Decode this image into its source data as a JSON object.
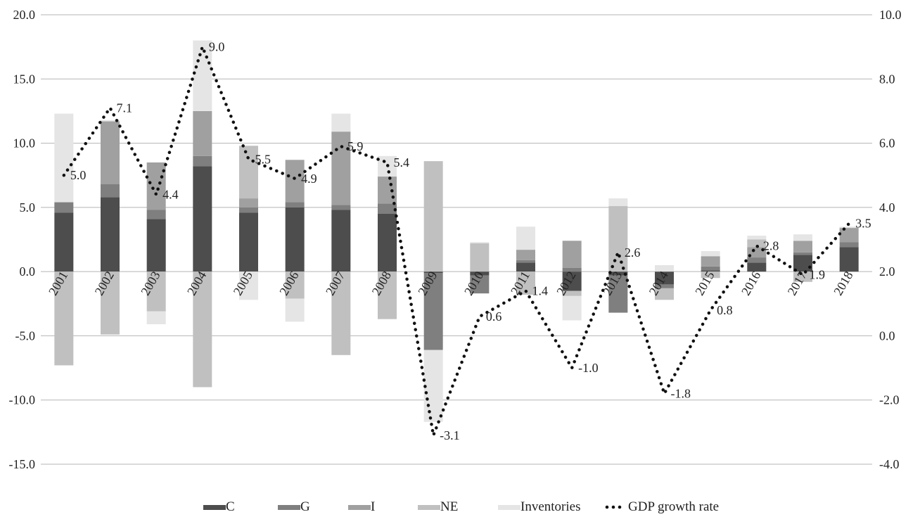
{
  "chart_data": {
    "type": "bar",
    "subtype": "stacked-bar-with-line",
    "categories": [
      "2001",
      "2002",
      "2003",
      "2004",
      "2005",
      "2006",
      "2007",
      "2008",
      "2009",
      "2010",
      "2011",
      "2012",
      "2013",
      "2014",
      "2015",
      "2016",
      "2017",
      "2018"
    ],
    "series": [
      {
        "name": "C",
        "color": "#4d4d4d",
        "values": [
          4.6,
          5.8,
          4.1,
          8.2,
          4.6,
          5.0,
          4.8,
          4.5,
          -0.1,
          -0.3,
          0.7,
          -1.5,
          -0.3,
          -1.0,
          0.1,
          0.7,
          1.3,
          1.9
        ]
      },
      {
        "name": "G",
        "color": "#7f7f7f",
        "values": [
          0.8,
          1.0,
          0.7,
          0.8,
          0.4,
          0.4,
          0.4,
          0.8,
          -6.0,
          -1.4,
          0.2,
          0.3,
          -2.9,
          -0.3,
          0.3,
          0.4,
          0.2,
          0.4
        ]
      },
      {
        "name": "I",
        "color": "#a0a0a0",
        "values": [
          0.0,
          4.9,
          3.7,
          3.5,
          0.7,
          3.3,
          5.7,
          2.1,
          0.0,
          0.0,
          0.8,
          2.1,
          0.0,
          0.0,
          0.8,
          0.8,
          0.9,
          1.1
        ]
      },
      {
        "name": "NE",
        "color": "#c0c0c0",
        "values": [
          -7.3,
          -4.9,
          -3.1,
          -9.0,
          4.1,
          -2.1,
          -6.5,
          -3.7,
          8.6,
          2.2,
          -1.8,
          -0.4,
          5.1,
          -0.9,
          -0.5,
          0.6,
          -0.8,
          0.0
        ]
      },
      {
        "name": "Inventories",
        "color": "#e5e5e5",
        "values": [
          6.9,
          0.1,
          -1.0,
          5.5,
          -2.2,
          -1.8,
          1.4,
          1.6,
          -5.6,
          0.1,
          1.8,
          -1.9,
          0.6,
          0.5,
          0.4,
          0.3,
          0.5,
          0.1
        ]
      }
    ],
    "line": {
      "name": "GDP growth rate",
      "axis": "right",
      "values": [
        5.0,
        7.1,
        4.4,
        9.0,
        5.5,
        4.9,
        5.9,
        5.4,
        -3.1,
        0.6,
        1.4,
        -1.0,
        2.6,
        -1.8,
        0.8,
        2.8,
        1.9,
        3.5
      ],
      "labels": [
        "5.0",
        "7.1",
        "4.4",
        "9.0",
        "5.5",
        "4.9",
        "5.9",
        "5.4",
        "-3.1",
        "0.6",
        "1.4",
        "-1.0",
        "2.6",
        "-1.8",
        "0.8",
        "2.8",
        "1.9",
        "3.5"
      ]
    },
    "left_axis": {
      "min": -15,
      "max": 20,
      "step": 5,
      "ticks": [
        "20.0",
        "15.0",
        "10.0",
        "5.0",
        "0.0",
        "-5.0",
        "-10.0",
        "-15.0"
      ]
    },
    "right_axis": {
      "min": -4,
      "max": 10,
      "step": 2,
      "ticks": [
        "10.0",
        "8.0",
        "6.0",
        "4.0",
        "2.0",
        "0.0",
        "-2.0",
        "-4.0"
      ]
    },
    "gridlines": true,
    "legend_position": "bottom",
    "title": "",
    "xlabel": "",
    "ylabel": ""
  }
}
